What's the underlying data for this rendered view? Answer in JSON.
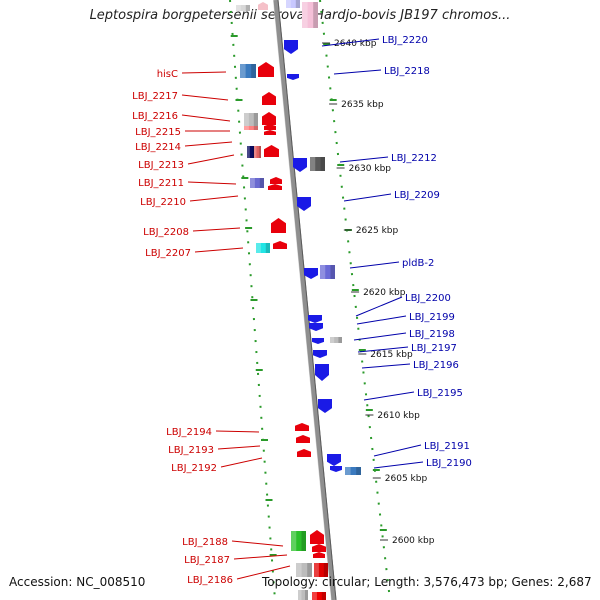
{
  "header": {
    "title": "Leptospira borgpetersenii serovar Hardjo-bovis JB197 chromos..."
  },
  "footer": {
    "accession": "Accession: NC_008510",
    "topology": "Topology: circular; Length: 3,576,473 bp; Genes: 2,687"
  },
  "colors": {
    "forward_strand": "#e8000b",
    "reverse_strand": "#1a1ae6",
    "forward_label": "#cc0000",
    "reverse_label": "#0000aa",
    "dotted_track": "#2a9a2a",
    "backbone": "#8f8f8f"
  },
  "ticks": [
    {
      "label": "2640 kbp"
    },
    {
      "label": "2635 kbp"
    },
    {
      "label": "2630 kbp"
    },
    {
      "label": "2625 kbp"
    },
    {
      "label": "2620 kbp"
    },
    {
      "label": "2615 kbp"
    },
    {
      "label": "2610 kbp"
    },
    {
      "label": "2605 kbp"
    },
    {
      "label": "2600 kbp"
    }
  ],
  "left_labels": [
    {
      "text": "hisC"
    },
    {
      "text": "LBJ_2217"
    },
    {
      "text": "LBJ_2216"
    },
    {
      "text": "LBJ_2215"
    },
    {
      "text": "LBJ_2214"
    },
    {
      "text": "LBJ_2213"
    },
    {
      "text": "LBJ_2211"
    },
    {
      "text": "LBJ_2210"
    },
    {
      "text": "LBJ_2208"
    },
    {
      "text": "LBJ_2207"
    },
    {
      "text": "LBJ_2194"
    },
    {
      "text": "LBJ_2193"
    },
    {
      "text": "LBJ_2192"
    },
    {
      "text": "LBJ_2188"
    },
    {
      "text": "LBJ_2187"
    },
    {
      "text": "LBJ_2186"
    }
  ],
  "right_labels": [
    {
      "text": "LBJ_2220"
    },
    {
      "text": "LBJ_2218"
    },
    {
      "text": "LBJ_2212"
    },
    {
      "text": "LBJ_2209"
    },
    {
      "text": "pldB-2"
    },
    {
      "text": "LBJ_2200"
    },
    {
      "text": "LBJ_2199"
    },
    {
      "text": "LBJ_2198"
    },
    {
      "text": "LBJ_2197"
    },
    {
      "text": "LBJ_2196"
    },
    {
      "text": "LBJ_2195"
    },
    {
      "text": "LBJ_2191"
    },
    {
      "text": "LBJ_2190"
    }
  ]
}
